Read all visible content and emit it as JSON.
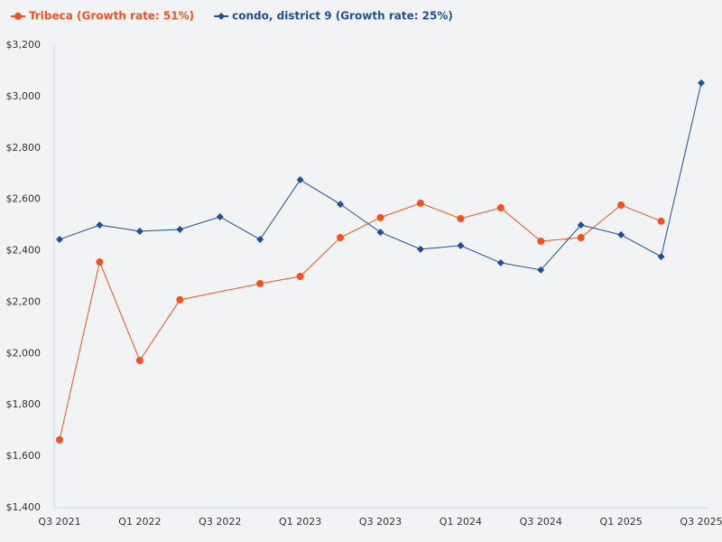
{
  "chart_data": {
    "type": "line",
    "categories": [
      "Q3 2021",
      null,
      "Q1 2022",
      null,
      "Q3 2022",
      null,
      "Q1 2023",
      null,
      "Q3 2023",
      null,
      "Q1 2024",
      null,
      "Q3 2024",
      null,
      "Q1 2025",
      null,
      "Q3 2025"
    ],
    "series": [
      {
        "name": "Tribeca (Growth rate: 51%)",
        "color": "#f4511e",
        "marker": "circle",
        "values": [
          1664,
          2356,
          1973,
          2209,
          null,
          2272,
          2300,
          2451,
          2529,
          2585,
          2525,
          2567,
          2437,
          2451,
          2578,
          2515,
          null
        ]
      },
      {
        "name": "condo, district 9 (Growth rate: 25%)",
        "color": "#1f4e9c",
        "marker": "diamond",
        "values": [
          2444,
          2500,
          2476,
          2483,
          2532,
          2444,
          2676,
          2581,
          2472,
          2406,
          2420,
          2353,
          2325,
          2500,
          2462,
          2377,
          3053
        ]
      }
    ],
    "ylim": [
      1400,
      3200
    ],
    "yticks": [
      {
        "value": 1400,
        "label": "$1,400"
      },
      {
        "value": 1600,
        "label": "$1,600"
      },
      {
        "value": 1800,
        "label": "$1,800"
      },
      {
        "value": 2000,
        "label": "$2,000"
      },
      {
        "value": 2200,
        "label": "$2,200"
      },
      {
        "value": 2400,
        "label": "$2,400"
      },
      {
        "value": 2600,
        "label": "$2,600"
      },
      {
        "value": 2800,
        "label": "$2,800"
      },
      {
        "value": 3000,
        "label": "$3,000"
      },
      {
        "value": 3200,
        "label": "$3,200"
      }
    ],
    "legend": "top-left",
    "grid": false
  }
}
